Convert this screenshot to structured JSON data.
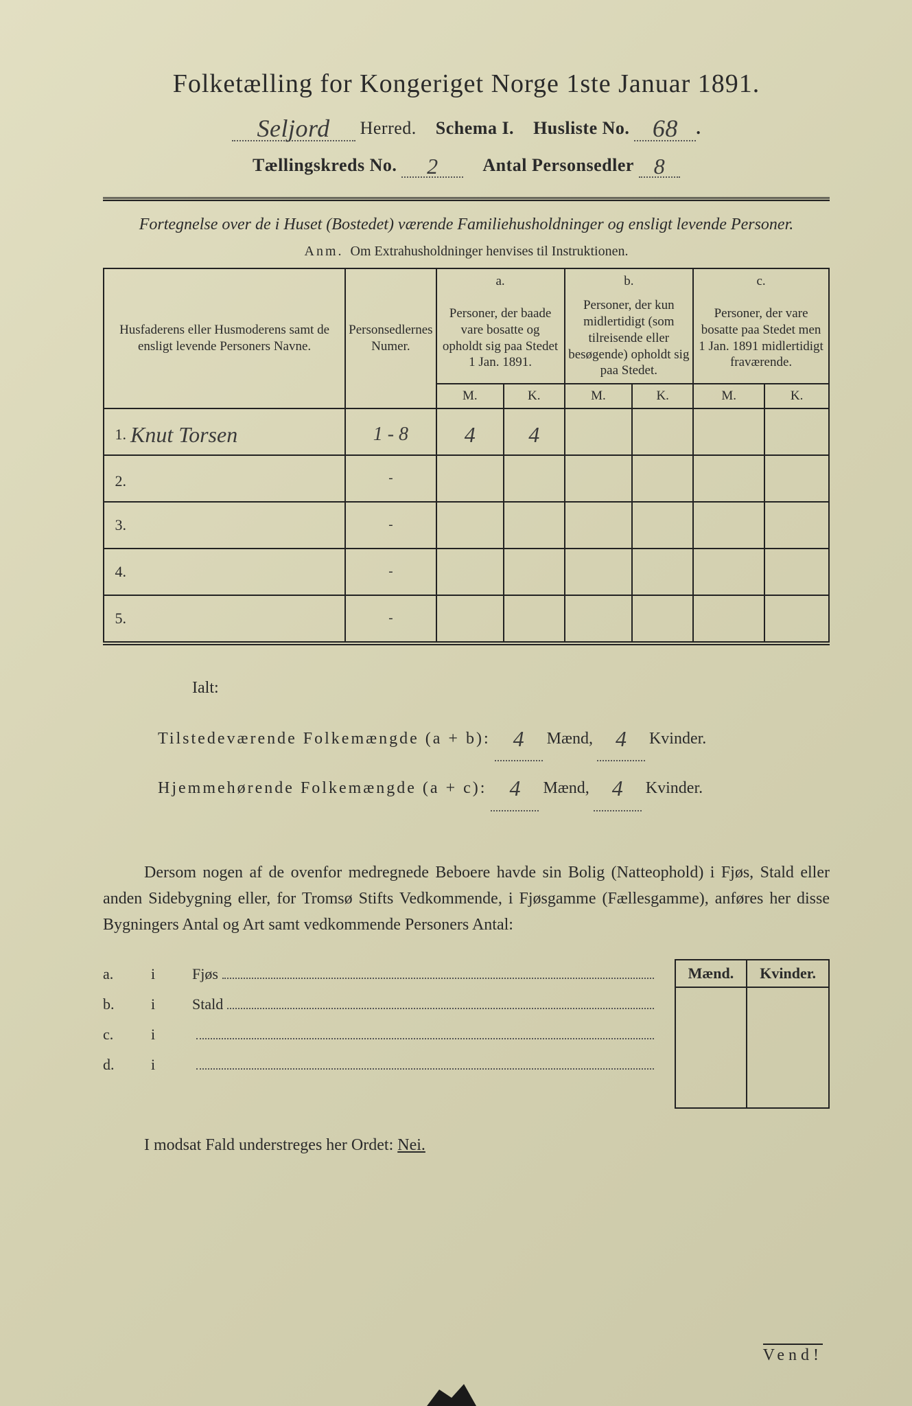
{
  "colors": {
    "paper_bg_start": "#e2dfc2",
    "paper_bg_mid": "#d5d2b2",
    "paper_bg_end": "#cbc8a8",
    "ink": "#2a2a2a",
    "handwriting": "#3a3a3a",
    "rule": "#222222",
    "dotted": "#555555"
  },
  "typography": {
    "title_fontsize_pt": 28,
    "body_fontsize_pt": 18,
    "handwriting_family": "cursive"
  },
  "header": {
    "title": "Folketælling for Kongeriget Norge 1ste Januar 1891.",
    "herred_written": "Seljord",
    "herred_label": "Herred.",
    "schema_label": "Schema I.",
    "husliste_label": "Husliste No.",
    "husliste_no": "68",
    "kreds_label": "Tællingskreds No.",
    "kreds_no": "2",
    "antal_label": "Antal Personsedler",
    "antal_no": "8"
  },
  "fortegnelse": {
    "line": "Fortegnelse over de i Huset (Bostedet) værende Familiehusholdninger og ensligt levende Personer.",
    "anm_prefix": "Anm.",
    "anm_text": "Om Extrahusholdninger henvises til Instruktionen."
  },
  "table": {
    "col_name": "Husfaderens eller Husmoderens samt de ensligt levende Personers Navne.",
    "col_num": "Personsedlernes Numer.",
    "col_a_letter": "a.",
    "col_a": "Personer, der baade vare bosatte og opholdt sig paa Stedet 1 Jan. 1891.",
    "col_b_letter": "b.",
    "col_b": "Personer, der kun midlertidigt (som tilreisende eller besøgende) opholdt sig paa Stedet.",
    "col_c_letter": "c.",
    "col_c": "Personer, der vare bosatte paa Stedet men 1 Jan. 1891 midlertidigt fraværende.",
    "m_label": "M.",
    "k_label": "K.",
    "rows": [
      {
        "n": "1.",
        "name": "Knut Torsen",
        "num": "1 - 8",
        "a_m": "4",
        "a_k": "4",
        "b_m": "",
        "b_k": "",
        "c_m": "",
        "c_k": ""
      },
      {
        "n": "2.",
        "name": "",
        "num": "-",
        "a_m": "",
        "a_k": "",
        "b_m": "",
        "b_k": "",
        "c_m": "",
        "c_k": ""
      },
      {
        "n": "3.",
        "name": "",
        "num": "-",
        "a_m": "",
        "a_k": "",
        "b_m": "",
        "b_k": "",
        "c_m": "",
        "c_k": ""
      },
      {
        "n": "4.",
        "name": "",
        "num": "-",
        "a_m": "",
        "a_k": "",
        "b_m": "",
        "b_k": "",
        "c_m": "",
        "c_k": ""
      },
      {
        "n": "5.",
        "name": "",
        "num": "-",
        "a_m": "",
        "a_k": "",
        "b_m": "",
        "b_k": "",
        "c_m": "",
        "c_k": ""
      }
    ]
  },
  "ialt": {
    "title": "Ialt:",
    "line1_label": "Tilstedeværende Folkemængde (a + b):",
    "line2_label": "Hjemmehørende Folkemængde (a + c):",
    "maend": "Mænd,",
    "kvinder": "Kvinder.",
    "tilstede_m": "4",
    "tilstede_k": "4",
    "hjemme_m": "4",
    "hjemme_k": "4"
  },
  "para": {
    "text": "Dersom nogen af de ovenfor medregnede Beboere havde sin Bolig (Natteophold) i Fjøs, Stald eller anden Sidebygning eller, for Tromsø Stifts Vedkommende, i Fjøsgamme (Fællesgamme), anføres her disse Bygningers Antal og Art samt vedkommende Personers Antal:"
  },
  "sidebyg": {
    "mk_m": "Mænd.",
    "mk_k": "Kvinder.",
    "rows": [
      {
        "l": "a.",
        "i": "i",
        "t": "Fjøs"
      },
      {
        "l": "b.",
        "i": "i",
        "t": "Stald"
      },
      {
        "l": "c.",
        "i": "i",
        "t": ""
      },
      {
        "l": "d.",
        "i": "i",
        "t": ""
      }
    ]
  },
  "modsat": {
    "text_pre": "I modsat Fald understreges her Ordet: ",
    "nei": "Nei."
  },
  "vend": "Vend!"
}
